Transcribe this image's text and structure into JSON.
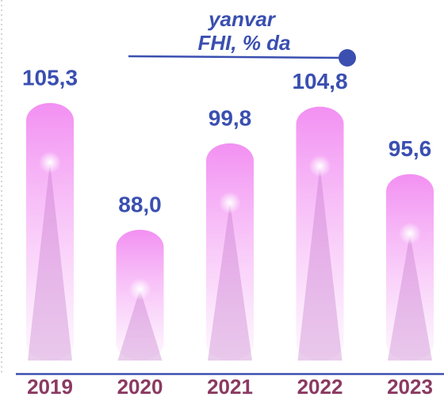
{
  "chart_data": {
    "type": "bar",
    "title": "yanvar",
    "subtitle": "FHI, % da",
    "categories": [
      "2019",
      "2020",
      "2021",
      "2022",
      "2023"
    ],
    "values": [
      105.3,
      88.0,
      99.8,
      104.8,
      95.6
    ],
    "value_labels": [
      "105,3",
      "88,0",
      "99,8",
      "104,8",
      "95,6"
    ],
    "color": "#f0a0f0"
  }
}
